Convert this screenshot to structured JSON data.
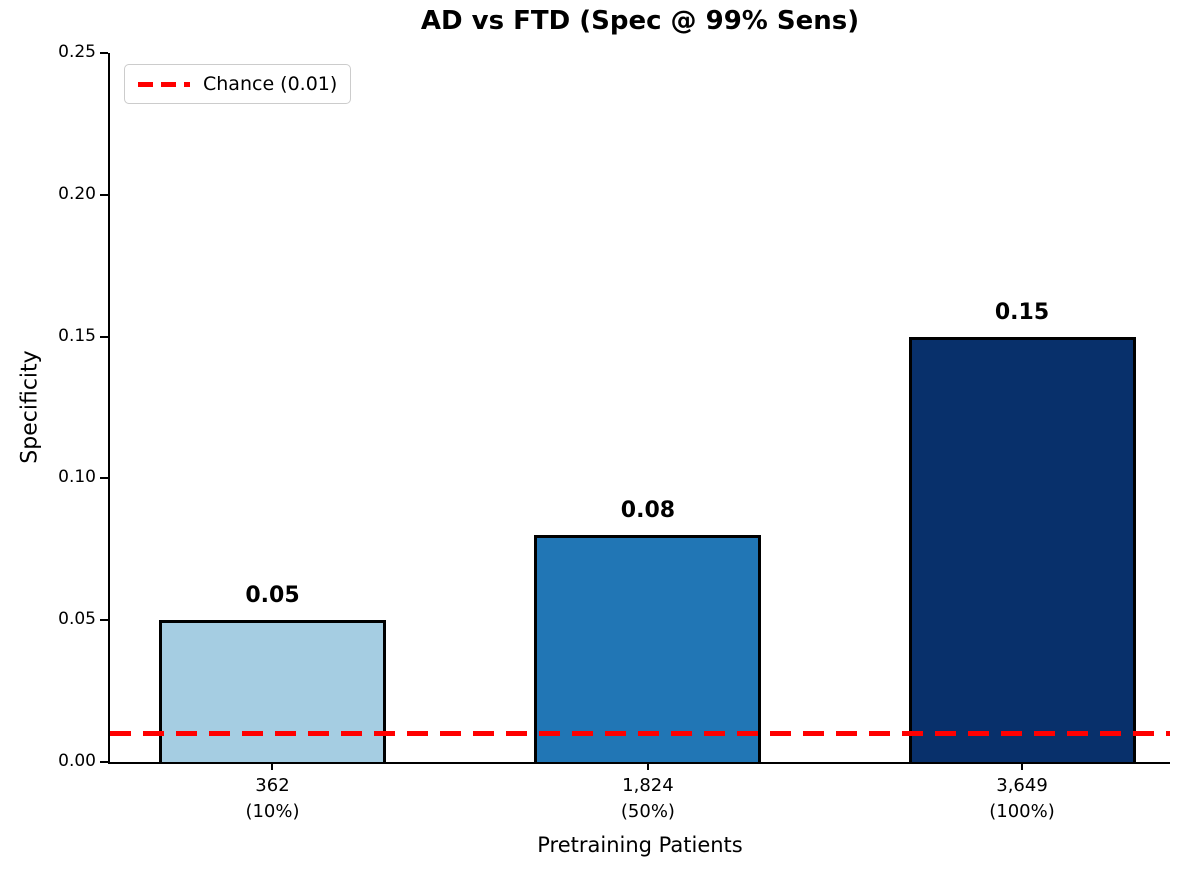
{
  "chart_data": {
    "type": "bar",
    "title": "AD vs FTD (Spec @ 99% Sens)",
    "xlabel": "Pretraining Patients",
    "ylabel": "Specificity",
    "categories": [
      "362\n(10%)",
      "1,824\n(50%)",
      "3,649\n(100%)"
    ],
    "values": [
      0.05,
      0.08,
      0.15
    ],
    "value_labels": [
      "0.05",
      "0.08",
      "0.15"
    ],
    "bar_colors": [
      "#a5cde2",
      "#2176b5",
      "#08306b"
    ],
    "bar_edge_color": "#000000",
    "ylim": [
      0.0,
      0.25
    ],
    "yticks": [
      0.0,
      0.05,
      0.1,
      0.15,
      0.2,
      0.25
    ],
    "ytick_labels": [
      "0.00",
      "0.05",
      "0.10",
      "0.15",
      "0.20",
      "0.25"
    ],
    "grid": false,
    "background_color": "#ffffff",
    "reference_line": {
      "value": 0.01,
      "style": "dashed",
      "color": "#ff0000",
      "label": "Chance (0.01)"
    },
    "legend": {
      "position": "upper left",
      "entries": [
        {
          "label": "Chance (0.01)",
          "color": "#ff0000",
          "line_style": "dashed"
        }
      ]
    }
  }
}
